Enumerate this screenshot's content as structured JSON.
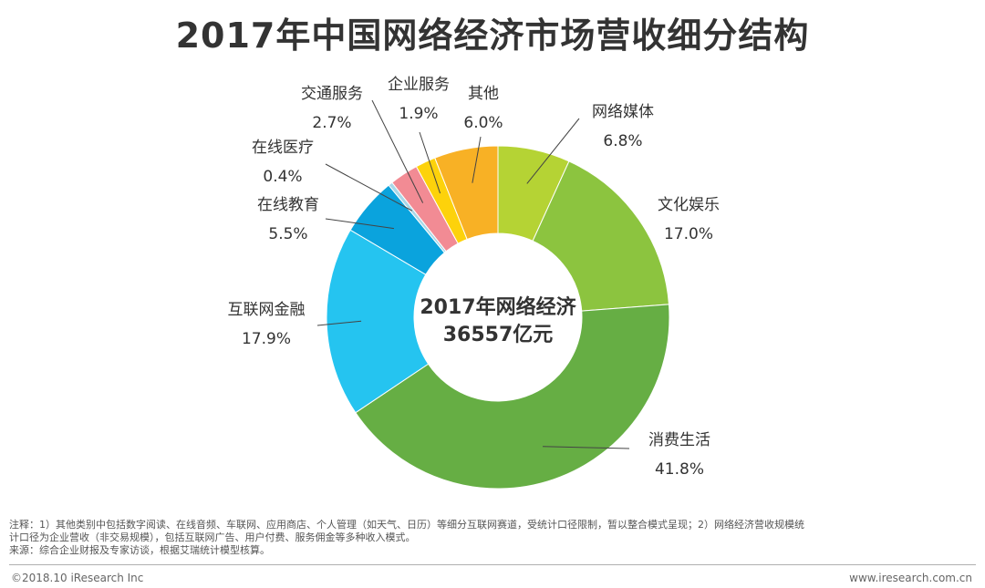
{
  "title": "2017年中国网络经济市场营收细分结构",
  "chart_data": {
    "type": "pie",
    "variant": "donut",
    "title": "2017年中国网络经济市场营收细分结构",
    "center_label_line1": "2017年网络经济",
    "center_label_line2": "36557亿元",
    "unit": "%",
    "slices": [
      {
        "name": "网络媒体",
        "value": 6.8,
        "value_label": "6.8%",
        "color": "#b5d334"
      },
      {
        "name": "文化娱乐",
        "value": 17.0,
        "value_label": "17.0%",
        "color": "#8cc43f"
      },
      {
        "name": "消费生活",
        "value": 41.8,
        "value_label": "41.8%",
        "color": "#66ae44"
      },
      {
        "name": "互联网金融",
        "value": 17.9,
        "value_label": "17.9%",
        "color": "#25c4f0"
      },
      {
        "name": "在线教育",
        "value": 5.5,
        "value_label": "5.5%",
        "color": "#0aa3dd"
      },
      {
        "name": "在线医疗",
        "value": 0.4,
        "value_label": "0.4%",
        "color": "#a8d8e8"
      },
      {
        "name": "交通服务",
        "value": 2.7,
        "value_label": "2.7%",
        "color": "#f28b94"
      },
      {
        "name": "企业服务",
        "value": 1.9,
        "value_label": "1.9%",
        "color": "#fdd20b"
      },
      {
        "name": "其他",
        "value": 6.0,
        "value_label": "6.0%",
        "color": "#f8b125"
      }
    ]
  },
  "notes": {
    "line1": "注释：1）其他类别中包括数字阅读、在线音频、车联网、应用商店、个人管理（如天气、日历）等细分互联网赛道，受统计口径限制，暂以整合模式呈现；2）网络经济营收规模统",
    "line2": "计口径为企业营收（非交易规模），包括互联网广告、用户付费、服务佣金等多种收入模式。",
    "line3": "来源：综合企业财报及专家访谈，根据艾瑞统计模型核算。"
  },
  "footer": {
    "copyright": "©2018.10 iResearch Inc",
    "website": "www.iresearch.com.cn"
  }
}
